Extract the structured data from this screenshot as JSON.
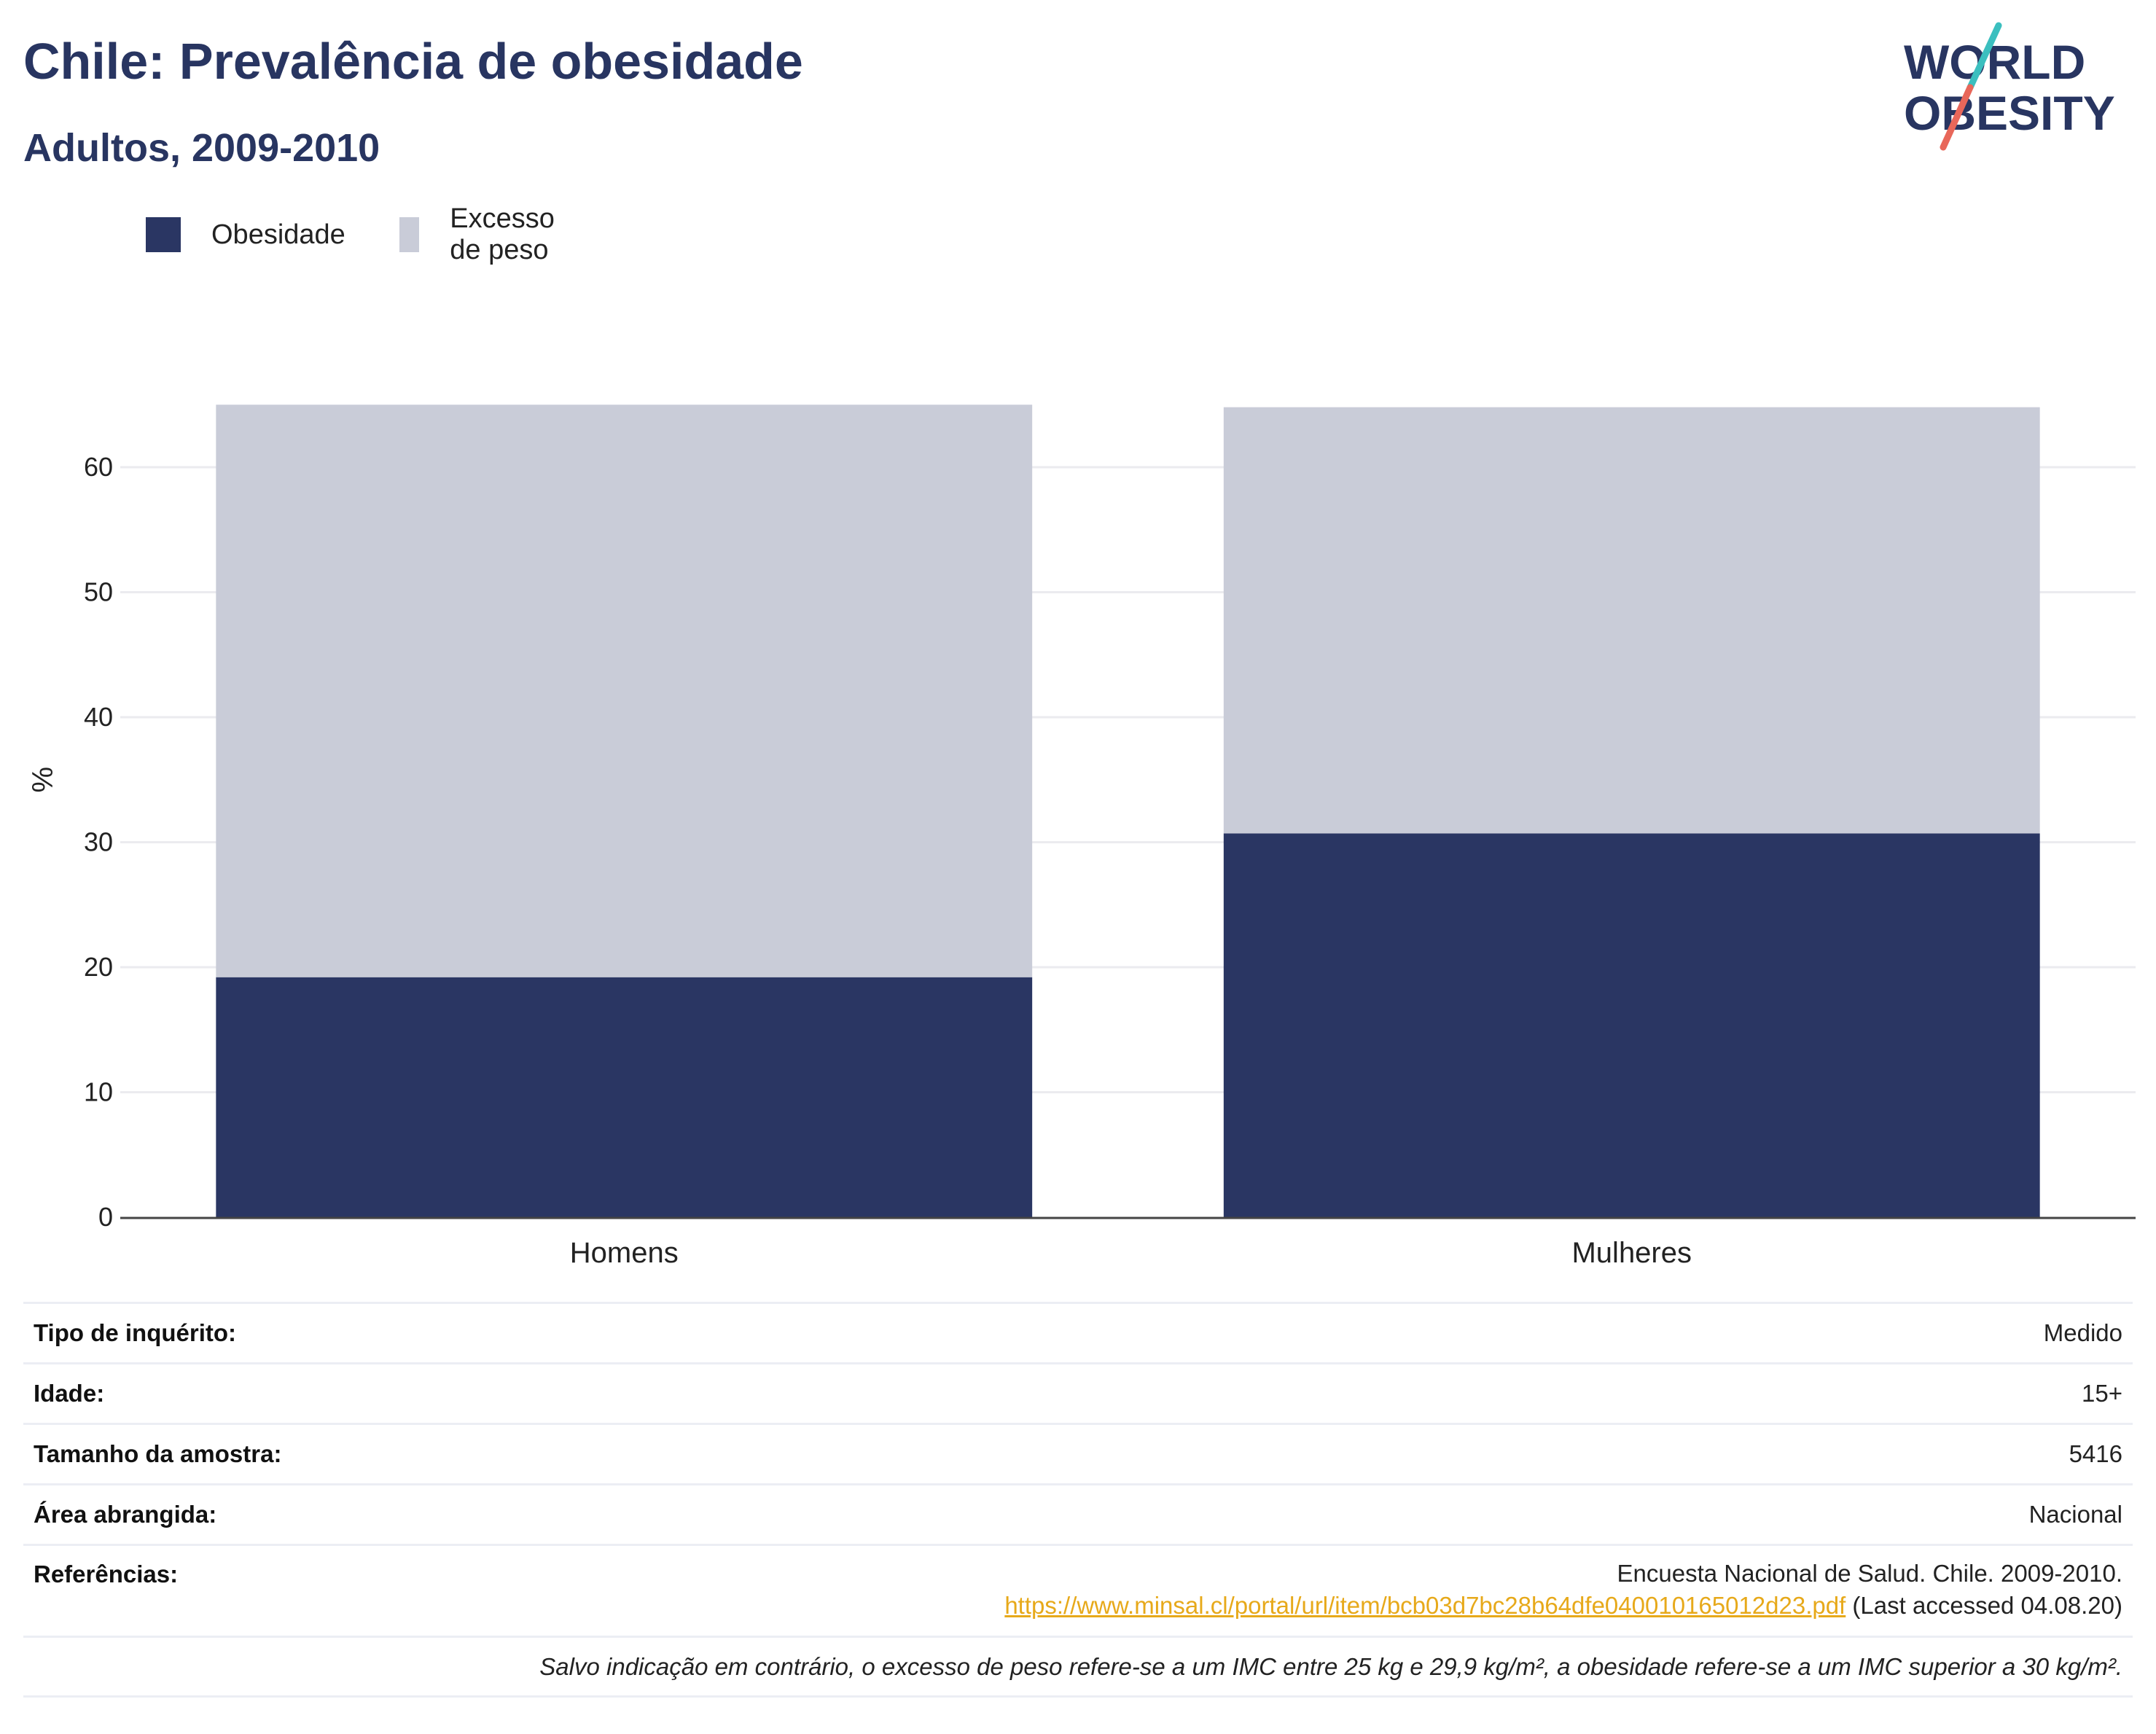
{
  "header": {
    "title": "Chile: Prevalência de obesidade",
    "subtitle": "Adultos, 2009-2010"
  },
  "logo": {
    "line1": "WORLD",
    "line2": "OBESITY",
    "colors": {
      "text": "#283561",
      "slash_top": "#3bbfbf",
      "slash_bottom": "#e8675a"
    }
  },
  "legend": {
    "items": [
      {
        "label": "Obesidade",
        "color": "#2a3663"
      },
      {
        "label": "Excesso de peso",
        "color": "#c9ccd8"
      }
    ]
  },
  "chart_data": {
    "type": "bar",
    "stacked": true,
    "categories": [
      "Homens",
      "Mulheres"
    ],
    "series": [
      {
        "name": "Obesidade",
        "color": "#2a3663",
        "values": [
          19.2,
          30.7
        ]
      },
      {
        "name": "Excesso de peso",
        "color": "#c9ccd8",
        "values": [
          45.8,
          34.1
        ]
      }
    ],
    "ylabel": "%",
    "ylim": [
      0,
      70
    ],
    "yticks": [
      0,
      10,
      20,
      30,
      40,
      50,
      60
    ],
    "grid": true,
    "legend_position": "top-left"
  },
  "meta": {
    "rows": [
      {
        "label": "Tipo de inquérito:",
        "value": "Medido"
      },
      {
        "label": "Idade:",
        "value": "15+"
      },
      {
        "label": "Tamanho da amostra:",
        "value": "5416"
      },
      {
        "label": "Área abrangida:",
        "value": "Nacional"
      }
    ],
    "references": {
      "label": "Referências:",
      "text_before": "Encuesta Nacional de Salud. Chile. 2009-2010. ",
      "link": "https://www.minsal.cl/portal/url/item/bcb03d7bc28b64dfe040010165012d23.pdf",
      "text_after": " (Last accessed 04.08.20)"
    },
    "note": "Salvo indicação em contrário, o excesso de peso refere-se a um IMC entre 25 kg e 29,9 kg/m², a obesidade refere-se a um IMC superior a 30 kg/m²."
  }
}
